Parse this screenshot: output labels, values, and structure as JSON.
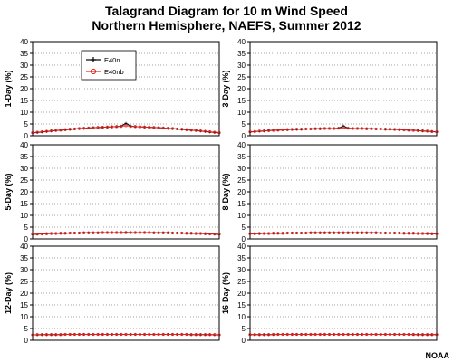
{
  "figure": {
    "title_line1": "Talagrand Diagram for 10 m Wind Speed",
    "title_line2": "Northern Hemisphere, NAEFS, Summer 2012",
    "footer": "NOAA"
  },
  "chart_data": [
    {
      "type": "line",
      "ylabel": "1-Day (%)",
      "ylim": [
        0,
        40
      ],
      "yticks": [
        0,
        5,
        10,
        15,
        20,
        25,
        30,
        35,
        40
      ],
      "xlim": [
        1,
        41
      ],
      "grid": "horizontal dotted",
      "legend": "top-left",
      "x": [
        1,
        2,
        3,
        4,
        5,
        6,
        7,
        8,
        9,
        10,
        11,
        12,
        13,
        14,
        15,
        16,
        17,
        18,
        19,
        20,
        21,
        22,
        23,
        24,
        25,
        26,
        27,
        28,
        29,
        30,
        31,
        32,
        33,
        34,
        35,
        36,
        37,
        38,
        39,
        40,
        41
      ],
      "series": [
        {
          "name": "E40n",
          "color": "#000000",
          "marker": "plus",
          "values": [
            1.2,
            1.4,
            1.6,
            1.8,
            2.0,
            2.2,
            2.4,
            2.5,
            2.7,
            2.9,
            3.0,
            3.1,
            3.3,
            3.4,
            3.5,
            3.6,
            3.7,
            3.8,
            3.9,
            4.1,
            5.3,
            4.1,
            3.9,
            3.8,
            3.7,
            3.6,
            3.5,
            3.4,
            3.3,
            3.1,
            3.0,
            2.9,
            2.7,
            2.5,
            2.4,
            2.2,
            2.0,
            1.8,
            1.6,
            1.4,
            1.2
          ]
        },
        {
          "name": "E40nb",
          "color": "#e0201c",
          "marker": "circle",
          "values": [
            1.3,
            1.5,
            1.7,
            1.9,
            2.1,
            2.3,
            2.4,
            2.6,
            2.8,
            2.9,
            3.1,
            3.2,
            3.3,
            3.4,
            3.5,
            3.6,
            3.7,
            3.8,
            3.9,
            4.0,
            4.3,
            4.0,
            3.9,
            3.8,
            3.7,
            3.6,
            3.5,
            3.4,
            3.3,
            3.2,
            3.1,
            2.9,
            2.8,
            2.6,
            2.4,
            2.3,
            2.1,
            1.9,
            1.7,
            1.5,
            1.3
          ]
        }
      ]
    },
    {
      "type": "line",
      "ylabel": "3-Day (%)",
      "ylim": [
        0,
        40
      ],
      "yticks": [
        0,
        5,
        10,
        15,
        20,
        25,
        30,
        35,
        40
      ],
      "xlim": [
        1,
        41
      ],
      "grid": "horizontal dotted",
      "x": [
        1,
        2,
        3,
        4,
        5,
        6,
        7,
        8,
        9,
        10,
        11,
        12,
        13,
        14,
        15,
        16,
        17,
        18,
        19,
        20,
        21,
        22,
        23,
        24,
        25,
        26,
        27,
        28,
        29,
        30,
        31,
        32,
        33,
        34,
        35,
        36,
        37,
        38,
        39,
        40,
        41
      ],
      "series": [
        {
          "name": "E40n",
          "color": "#000000",
          "marker": "plus",
          "values": [
            1.6,
            1.8,
            1.9,
            2.0,
            2.2,
            2.3,
            2.4,
            2.5,
            2.6,
            2.7,
            2.7,
            2.8,
            2.9,
            2.9,
            3.0,
            3.0,
            3.1,
            3.1,
            3.1,
            3.2,
            4.2,
            3.2,
            3.1,
            3.1,
            3.1,
            3.0,
            3.0,
            2.9,
            2.9,
            2.8,
            2.7,
            2.7,
            2.6,
            2.5,
            2.4,
            2.3,
            2.2,
            2.0,
            1.9,
            1.8,
            1.6
          ]
        },
        {
          "name": "E40nb",
          "color": "#e0201c",
          "marker": "circle",
          "values": [
            1.7,
            1.8,
            2.0,
            2.1,
            2.2,
            2.3,
            2.4,
            2.5,
            2.6,
            2.7,
            2.8,
            2.8,
            2.9,
            2.9,
            3.0,
            3.0,
            3.1,
            3.1,
            3.1,
            3.2,
            3.4,
            3.2,
            3.1,
            3.1,
            3.1,
            3.0,
            3.0,
            2.9,
            2.9,
            2.8,
            2.8,
            2.7,
            2.6,
            2.5,
            2.4,
            2.3,
            2.2,
            2.1,
            2.0,
            1.8,
            1.7
          ]
        }
      ]
    },
    {
      "type": "line",
      "ylabel": "5-Day (%)",
      "ylim": [
        0,
        40
      ],
      "yticks": [
        0,
        5,
        10,
        15,
        20,
        25,
        30,
        35,
        40
      ],
      "xlim": [
        1,
        41
      ],
      "grid": "horizontal dotted",
      "x": [
        1,
        2,
        3,
        4,
        5,
        6,
        7,
        8,
        9,
        10,
        11,
        12,
        13,
        14,
        15,
        16,
        17,
        18,
        19,
        20,
        21,
        22,
        23,
        24,
        25,
        26,
        27,
        28,
        29,
        30,
        31,
        32,
        33,
        34,
        35,
        36,
        37,
        38,
        39,
        40,
        41
      ],
      "series": [
        {
          "name": "E40n",
          "color": "#000000",
          "marker": "plus",
          "values": [
            1.9,
            2.0,
            2.1,
            2.2,
            2.3,
            2.3,
            2.4,
            2.4,
            2.5,
            2.5,
            2.5,
            2.6,
            2.6,
            2.6,
            2.6,
            2.7,
            2.7,
            2.7,
            2.7,
            2.7,
            2.8,
            2.7,
            2.7,
            2.7,
            2.7,
            2.7,
            2.6,
            2.6,
            2.6,
            2.6,
            2.5,
            2.5,
            2.5,
            2.4,
            2.4,
            2.3,
            2.3,
            2.2,
            2.1,
            2.0,
            1.9
          ]
        },
        {
          "name": "E40nb",
          "color": "#e0201c",
          "marker": "circle",
          "values": [
            2.0,
            2.1,
            2.1,
            2.2,
            2.3,
            2.3,
            2.4,
            2.4,
            2.5,
            2.5,
            2.5,
            2.6,
            2.6,
            2.6,
            2.6,
            2.7,
            2.7,
            2.7,
            2.7,
            2.7,
            2.7,
            2.7,
            2.7,
            2.7,
            2.7,
            2.7,
            2.6,
            2.6,
            2.6,
            2.6,
            2.5,
            2.5,
            2.5,
            2.4,
            2.4,
            2.3,
            2.3,
            2.2,
            2.1,
            2.1,
            2.0
          ]
        }
      ]
    },
    {
      "type": "line",
      "ylabel": "8-Day (%)",
      "ylim": [
        0,
        40
      ],
      "yticks": [
        0,
        5,
        10,
        15,
        20,
        25,
        30,
        35,
        40
      ],
      "xlim": [
        1,
        41
      ],
      "grid": "horizontal dotted",
      "x": [
        1,
        2,
        3,
        4,
        5,
        6,
        7,
        8,
        9,
        10,
        11,
        12,
        13,
        14,
        15,
        16,
        17,
        18,
        19,
        20,
        21,
        22,
        23,
        24,
        25,
        26,
        27,
        28,
        29,
        30,
        31,
        32,
        33,
        34,
        35,
        36,
        37,
        38,
        39,
        40,
        41
      ],
      "series": [
        {
          "name": "E40n",
          "color": "#000000",
          "marker": "plus",
          "values": [
            2.1,
            2.2,
            2.2,
            2.3,
            2.3,
            2.4,
            2.4,
            2.4,
            2.5,
            2.5,
            2.5,
            2.5,
            2.5,
            2.6,
            2.6,
            2.6,
            2.6,
            2.6,
            2.6,
            2.6,
            2.6,
            2.6,
            2.6,
            2.6,
            2.6,
            2.6,
            2.6,
            2.6,
            2.5,
            2.5,
            2.5,
            2.5,
            2.5,
            2.4,
            2.4,
            2.4,
            2.3,
            2.3,
            2.2,
            2.2,
            2.1
          ]
        },
        {
          "name": "E40nb",
          "color": "#e0201c",
          "marker": "circle",
          "values": [
            2.2,
            2.2,
            2.3,
            2.3,
            2.3,
            2.4,
            2.4,
            2.4,
            2.5,
            2.5,
            2.5,
            2.5,
            2.5,
            2.6,
            2.6,
            2.6,
            2.6,
            2.6,
            2.6,
            2.6,
            2.6,
            2.6,
            2.6,
            2.6,
            2.6,
            2.6,
            2.6,
            2.6,
            2.5,
            2.5,
            2.5,
            2.5,
            2.5,
            2.4,
            2.4,
            2.4,
            2.3,
            2.3,
            2.3,
            2.2,
            2.2
          ]
        }
      ]
    },
    {
      "type": "line",
      "ylabel": "12-Day (%)",
      "ylim": [
        0,
        40
      ],
      "yticks": [
        0,
        5,
        10,
        15,
        20,
        25,
        30,
        35,
        40
      ],
      "xlim": [
        1,
        41
      ],
      "grid": "horizontal dotted",
      "x": [
        1,
        2,
        3,
        4,
        5,
        6,
        7,
        8,
        9,
        10,
        11,
        12,
        13,
        14,
        15,
        16,
        17,
        18,
        19,
        20,
        21,
        22,
        23,
        24,
        25,
        26,
        27,
        28,
        29,
        30,
        31,
        32,
        33,
        34,
        35,
        36,
        37,
        38,
        39,
        40,
        41
      ],
      "series": [
        {
          "name": "E40n",
          "color": "#000000",
          "marker": "plus",
          "values": [
            2.3,
            2.3,
            2.4,
            2.4,
            2.4,
            2.4,
            2.4,
            2.5,
            2.5,
            2.5,
            2.5,
            2.5,
            2.5,
            2.5,
            2.5,
            2.5,
            2.5,
            2.5,
            2.5,
            2.5,
            2.5,
            2.5,
            2.5,
            2.5,
            2.5,
            2.5,
            2.5,
            2.5,
            2.5,
            2.5,
            2.5,
            2.5,
            2.5,
            2.5,
            2.4,
            2.4,
            2.4,
            2.4,
            2.4,
            2.3,
            2.3
          ]
        },
        {
          "name": "E40nb",
          "color": "#e0201c",
          "marker": "circle",
          "values": [
            2.3,
            2.4,
            2.4,
            2.4,
            2.4,
            2.4,
            2.4,
            2.5,
            2.5,
            2.5,
            2.5,
            2.5,
            2.5,
            2.5,
            2.5,
            2.5,
            2.5,
            2.5,
            2.5,
            2.5,
            2.5,
            2.5,
            2.5,
            2.5,
            2.5,
            2.5,
            2.5,
            2.5,
            2.5,
            2.5,
            2.5,
            2.5,
            2.5,
            2.5,
            2.4,
            2.4,
            2.4,
            2.4,
            2.4,
            2.4,
            2.3
          ]
        }
      ]
    },
    {
      "type": "line",
      "ylabel": "16-Day (%)",
      "ylim": [
        0,
        40
      ],
      "yticks": [
        0,
        5,
        10,
        15,
        20,
        25,
        30,
        35,
        40
      ],
      "xlim": [
        1,
        41
      ],
      "grid": "horizontal dotted",
      "x": [
        1,
        2,
        3,
        4,
        5,
        6,
        7,
        8,
        9,
        10,
        11,
        12,
        13,
        14,
        15,
        16,
        17,
        18,
        19,
        20,
        21,
        22,
        23,
        24,
        25,
        26,
        27,
        28,
        29,
        30,
        31,
        32,
        33,
        34,
        35,
        36,
        37,
        38,
        39,
        40,
        41
      ],
      "series": [
        {
          "name": "E40n",
          "color": "#000000",
          "marker": "plus",
          "values": [
            2.4,
            2.4,
            2.4,
            2.4,
            2.4,
            2.4,
            2.5,
            2.5,
            2.5,
            2.5,
            2.5,
            2.5,
            2.5,
            2.5,
            2.5,
            2.5,
            2.5,
            2.5,
            2.5,
            2.5,
            2.5,
            2.5,
            2.5,
            2.5,
            2.5,
            2.5,
            2.5,
            2.5,
            2.5,
            2.5,
            2.5,
            2.5,
            2.5,
            2.5,
            2.5,
            2.4,
            2.4,
            2.4,
            2.4,
            2.4,
            2.4
          ]
        },
        {
          "name": "E40nb",
          "color": "#e0201c",
          "marker": "circle",
          "values": [
            2.4,
            2.4,
            2.4,
            2.4,
            2.4,
            2.5,
            2.5,
            2.5,
            2.5,
            2.5,
            2.5,
            2.5,
            2.5,
            2.5,
            2.5,
            2.5,
            2.5,
            2.5,
            2.5,
            2.5,
            2.5,
            2.5,
            2.5,
            2.5,
            2.5,
            2.5,
            2.5,
            2.5,
            2.5,
            2.5,
            2.5,
            2.5,
            2.5,
            2.5,
            2.5,
            2.5,
            2.4,
            2.4,
            2.4,
            2.4,
            2.4
          ]
        }
      ]
    }
  ]
}
